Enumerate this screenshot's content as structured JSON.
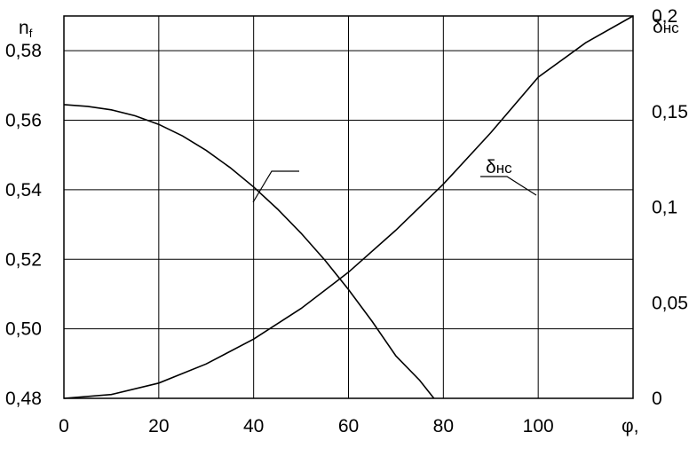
{
  "chart_data": {
    "type": "line",
    "xlabel": "φ,",
    "ylabel_left": "n",
    "ylabel_left_sub": "f",
    "ylabel_right": "δ",
    "ylabel_right_sub": "нс",
    "xlim": [
      0,
      120
    ],
    "ylim_left": [
      0.48,
      0.59
    ],
    "ylim_right": [
      0,
      0.2
    ],
    "x_ticks": [
      "0",
      "20",
      "40",
      "60",
      "80",
      "100"
    ],
    "y_left_ticks": [
      "0,48",
      "0,50",
      "0,52",
      "0,54",
      "0,56",
      "0,58"
    ],
    "y_right_ticks": [
      "0",
      "0,05",
      "0,1",
      "0,15",
      "0,2"
    ],
    "grid": true,
    "series": [
      {
        "axis": "left",
        "color": "#000000",
        "x": [
          0,
          5,
          10,
          15,
          20,
          25,
          30,
          35,
          40,
          45,
          50,
          55,
          60,
          65,
          70,
          75,
          78
        ],
        "values": [
          0.5645,
          0.564,
          0.563,
          0.5613,
          0.5588,
          0.5555,
          0.5513,
          0.5464,
          0.5408,
          0.5345,
          0.5275,
          0.5198,
          0.5113,
          0.5021,
          0.4922,
          0.4852,
          0.48
        ]
      },
      {
        "axis": "right",
        "name_main": "δ",
        "name_sub": "нс",
        "color": "#000000",
        "x": [
          0,
          10,
          20,
          30,
          40,
          50,
          60,
          70,
          80,
          90,
          100,
          110,
          120
        ],
        "values": [
          0,
          0.002,
          0.008,
          0.018,
          0.031,
          0.047,
          0.066,
          0.088,
          0.112,
          0.139,
          0.168,
          0.186,
          0.2
        ]
      }
    ]
  }
}
